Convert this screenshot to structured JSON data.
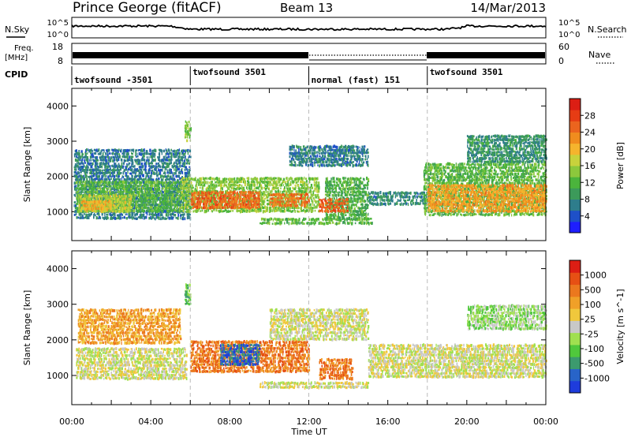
{
  "header": {
    "station": "Prince George (fitACF)",
    "beam": "Beam 13",
    "date": "14/Mar/2013"
  },
  "noise_panel": {
    "left_label": "N.Sky",
    "right_label": "N.Search",
    "left_ticks": [
      "10^5",
      "10^0"
    ],
    "right_ticks": [
      "10^5",
      "10^0"
    ]
  },
  "freq_panel": {
    "left_label_1": "Freq.",
    "left_label_2": "[MHz]",
    "right_label": "Nave",
    "left_ticks": [
      "18",
      "8"
    ],
    "right_ticks": [
      "60",
      "0"
    ]
  },
  "cpid": {
    "label": "CPID",
    "segments": [
      {
        "start_hour": 0,
        "end_hour": 6,
        "name": "twofsound -3501"
      },
      {
        "start_hour": 6,
        "end_hour": 12,
        "name": "twofsound 3501"
      },
      {
        "start_hour": 12,
        "end_hour": 18,
        "name": "normal (fast) 151"
      },
      {
        "start_hour": 18,
        "end_hour": 24,
        "name": "twofsound 3501"
      }
    ]
  },
  "xaxis": {
    "label": "Time UT",
    "ticks": [
      {
        "hour": 0,
        "label": "00:00"
      },
      {
        "hour": 4,
        "label": "04:00"
      },
      {
        "hour": 8,
        "label": "08:00"
      },
      {
        "hour": 12,
        "label": "12:00"
      },
      {
        "hour": 16,
        "label": "16:00"
      },
      {
        "hour": 20,
        "label": "20:00"
      },
      {
        "hour": 24,
        "label": "00:00"
      }
    ]
  },
  "chart_data": [
    {
      "type": "heatmap",
      "name": "power",
      "ylabel": "Slant Range [km]",
      "xlim": [
        0,
        24
      ],
      "ylim": [
        180,
        4500
      ],
      "yticks": [
        1000,
        2000,
        3000,
        4000
      ],
      "colorbar": {
        "label": "Power [dB]",
        "range": [
          0,
          32
        ],
        "ticks": [
          "28",
          "24",
          "20",
          "16",
          "12",
          "8",
          "4"
        ],
        "colors": [
          "#1e1eff",
          "#1e50c8",
          "#2e7d8c",
          "#3c9a5a",
          "#4bb43c",
          "#8cc83c",
          "#c8d23c",
          "#f5b42d",
          "#f08c1e",
          "#eb641e",
          "#e63c14",
          "#dc1e14"
        ]
      },
      "regions": [
        {
          "t0": 0.1,
          "t1": 6.0,
          "r0": 800,
          "r1": 2800,
          "v": 6
        },
        {
          "t0": 0.2,
          "t1": 5.5,
          "r0": 1000,
          "r1": 1900,
          "v": 12
        },
        {
          "t0": 0.3,
          "t1": 3.0,
          "r0": 1000,
          "r1": 1500,
          "v": 17
        },
        {
          "t0": 0.5,
          "t1": 2.0,
          "r0": 1050,
          "r1": 1350,
          "v": 21
        },
        {
          "t0": 5.5,
          "t1": 12.5,
          "r0": 1000,
          "r1": 2000,
          "v": 14
        },
        {
          "t0": 6.0,
          "t1": 9.5,
          "r0": 1100,
          "r1": 1600,
          "v": 26
        },
        {
          "t0": 10.0,
          "t1": 12.0,
          "r0": 1150,
          "r1": 1550,
          "v": 25
        },
        {
          "t0": 9.5,
          "t1": 15.2,
          "r0": 650,
          "r1": 850,
          "v": 12
        },
        {
          "t0": 12.8,
          "t1": 15.0,
          "r0": 800,
          "r1": 2000,
          "v": 11
        },
        {
          "t0": 12.5,
          "t1": 14.0,
          "r0": 1000,
          "r1": 1400,
          "v": 27
        },
        {
          "t0": 11.0,
          "t1": 15.0,
          "r0": 2300,
          "r1": 2900,
          "v": 6
        },
        {
          "t0": 15.0,
          "t1": 18.0,
          "r0": 1200,
          "r1": 1600,
          "v": 7
        },
        {
          "t0": 17.8,
          "t1": 24.0,
          "r0": 900,
          "r1": 2400,
          "v": 12
        },
        {
          "t0": 18.0,
          "t1": 24.0,
          "r0": 1000,
          "r1": 1800,
          "v": 22
        },
        {
          "t0": 20.0,
          "t1": 24.0,
          "r0": 2400,
          "r1": 3200,
          "v": 8
        },
        {
          "t0": 5.7,
          "t1": 6.0,
          "r0": 3000,
          "r1": 3600,
          "v": 14
        }
      ]
    },
    {
      "type": "heatmap",
      "name": "velocity",
      "ylabel": "Slant Range [km]",
      "xlim": [
        0,
        24
      ],
      "ylim": [
        180,
        4500
      ],
      "yticks": [
        1000,
        2000,
        3000,
        4000
      ],
      "colorbar": {
        "label": "Velocity [m s^-1]",
        "ticks": [
          "1000",
          "500",
          "100",
          "25",
          "-25",
          "-100",
          "-500",
          "-1000"
        ],
        "colors": [
          "#1e3cdc",
          "#2864c8",
          "#3c9a6e",
          "#50c83c",
          "#a0e050",
          "#c8c8c8",
          "#f0c83c",
          "#f0a028",
          "#eb781e",
          "#e65014",
          "#dc1e14"
        ]
      },
      "regions": [
        {
          "t0": 0.2,
          "t1": 5.8,
          "r0": 900,
          "r1": 1800,
          "v": 5
        },
        {
          "t0": 0.3,
          "t1": 5.5,
          "r0": 1900,
          "r1": 2900,
          "v": 7
        },
        {
          "t0": 6.0,
          "t1": 12.0,
          "r0": 1100,
          "r1": 2000,
          "v": 8
        },
        {
          "t0": 7.5,
          "t1": 9.5,
          "r0": 1300,
          "r1": 1900,
          "v": 1
        },
        {
          "t0": 9.5,
          "t1": 15.0,
          "r0": 650,
          "r1": 850,
          "v": 5
        },
        {
          "t0": 10.0,
          "t1": 15.0,
          "r0": 2000,
          "r1": 2900,
          "v": 5
        },
        {
          "t0": 12.5,
          "t1": 14.2,
          "r0": 900,
          "r1": 1500,
          "v": 8
        },
        {
          "t0": 15.0,
          "t1": 24.0,
          "r0": 950,
          "r1": 1900,
          "v": 5
        },
        {
          "t0": 20.0,
          "t1": 24.0,
          "r0": 2300,
          "r1": 3000,
          "v": 4
        },
        {
          "t0": 5.7,
          "t1": 6.0,
          "r0": 3000,
          "r1": 3600,
          "v": 3
        }
      ]
    }
  ]
}
